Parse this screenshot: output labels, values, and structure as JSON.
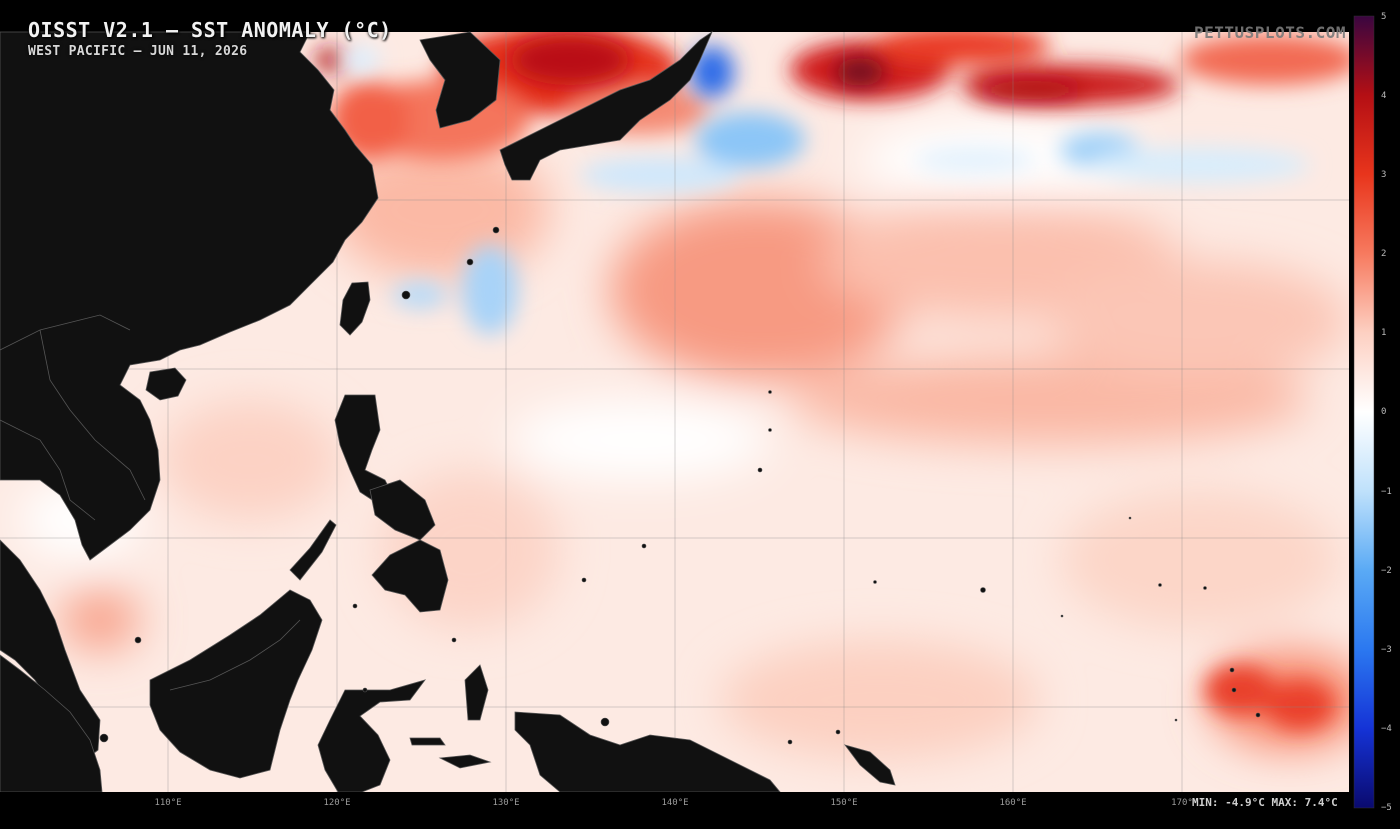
{
  "header": {
    "title": "OISST V2.1 — SST ANOMALY (°C)",
    "subtitle": "WEST PACIFIC — JUN 11, 2026",
    "watermark": "PETTUSPLOTS.COM"
  },
  "stats": {
    "minmax": "MIN: -4.9°C  MAX: 7.4°C"
  },
  "map": {
    "region": "West Pacific",
    "variable": "SST anomaly",
    "land_color": "#111111",
    "border_color": "#555555",
    "grid_color": "#888888",
    "lon_labels": [
      "110°E",
      "120°E",
      "130°E",
      "140°E",
      "150°E",
      "160°E",
      "170°"
    ]
  },
  "colorbar": {
    "range": [
      -5,
      5
    ],
    "ticks": [
      "5",
      "4",
      "3",
      "2",
      "1",
      "0",
      "−1",
      "−2",
      "−3",
      "−4",
      "−5"
    ],
    "colors": {
      "-5": "#0a0a6e",
      "-4": "#1533d6",
      "-3": "#2b78f0",
      "-2": "#5aaaf5",
      "-1": "#bfe1fb",
      "0": "#ffffff",
      "1": "#fdd0c2",
      "2": "#f77a5f",
      "3": "#e8351c",
      "4": "#b40f14",
      "5": "#3a0640"
    }
  }
}
